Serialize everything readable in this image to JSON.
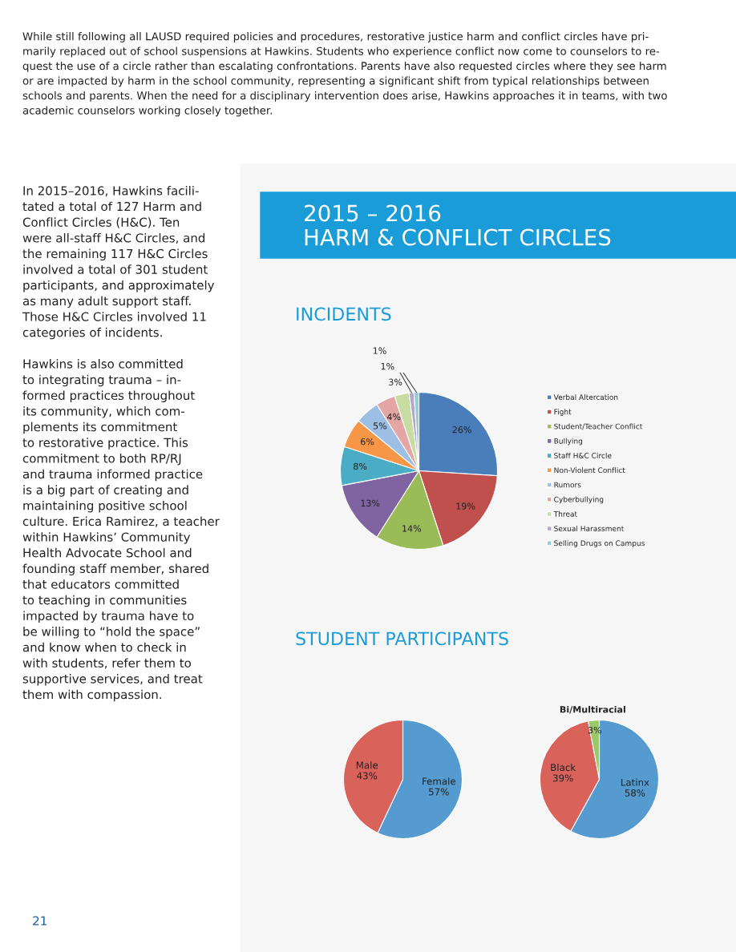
{
  "chart_data": [
    {
      "type": "pie",
      "title": "2015 – 2016\nHARM & CONFLICT CIRCLES",
      "subtitle": "INCIDENTS",
      "categories": [
        "Verbal Altercation",
        "Fight",
        "Student/Teacher Conflict",
        "Bullying",
        "Staff H&C Circle",
        "Non-Violent Conflict",
        "Rumors",
        "Cyberbullying",
        "Threat",
        "Sexual Harassment",
        "Selling Drugs on Campus"
      ],
      "values": [
        26,
        19,
        14,
        13,
        8,
        6,
        5,
        4,
        3,
        1,
        1
      ],
      "value_labels": [
        "26%",
        "19%",
        "14%",
        "13%",
        "8%",
        "6%",
        "5%",
        "4%",
        "3%",
        "1%",
        "1%"
      ],
      "colors": [
        "#4a7ebb",
        "#c0504d",
        "#9bbb59",
        "#8064a2",
        "#4bacc6",
        "#f79646",
        "#9dbfe3",
        "#e3a6a5",
        "#c7dca2",
        "#b3a6cc",
        "#93cddd"
      ],
      "legend": "right",
      "annotations": [
        "While still following all LAUSD required policies and procedures, restorative justice harm and conflict circles have pri-\nmarily replaced out of school suspensions at Hawkins. Students who experience conflict now come to counselors to re-\nquest the use of a circle rather than escalating confrontations. Parents have also requested circles where they see harm\nor are impacted by harm in the school community, representing a significant shift from typical relationships between\nschools and parents. When the need for a disciplinary intervention does arise, Hawkins approaches it in teams, with two\nacademic counselors working closely together.",
        "In 2015–2016, Hawkins facili-\ntated a total of 127 Harm and\nConflict Circles (H&C). Ten\nwere all-staff H&C Circles, and\nthe remaining 117 H&C Circles\ninvolved a total of 301 student\nparticipants, and approximately\nas many adult support staff.\nThose H&C Circles involved 11\ncategories of incidents.\n\nHawkins is also committed\nto integrating trauma – in-\nformed practices throughout\nits community, which com-\nplements its commitment\nto restorative practice. This\ncommitment to both RP/RJ\nand trauma informed practice\nis a big part of creating and\nmaintaining positive school\nculture. Erica Ramirez, a teacher\nwithin Hawkins’ Community\nHealth Advocate School and\nfounding staff member, shared\nthat educators committed\nto teaching in communities\nimpacted by trauma have to\nbe willing to “hold the space”\nand know when to check in\nwith students, refer them to\nsupportive services, and treat\nthem with compassion.",
        "21"
      ]
    },
    {
      "type": "pie",
      "title": "STUDENT PARTICIPANTS",
      "categories": [
        "Female",
        "Male"
      ],
      "values": [
        57,
        43
      ],
      "value_labels": [
        "57%",
        "43%"
      ],
      "colors": [
        "#559bd0",
        "#d9625b"
      ]
    },
    {
      "type": "pie",
      "categories": [
        "Latinx",
        "Black",
        "Bi/Multiracial"
      ],
      "values": [
        58,
        39,
        3
      ],
      "value_labels": [
        "58%",
        "39%",
        "3%"
      ],
      "colors": [
        "#559bd0",
        "#d9625b",
        "#9bc969"
      ]
    }
  ]
}
